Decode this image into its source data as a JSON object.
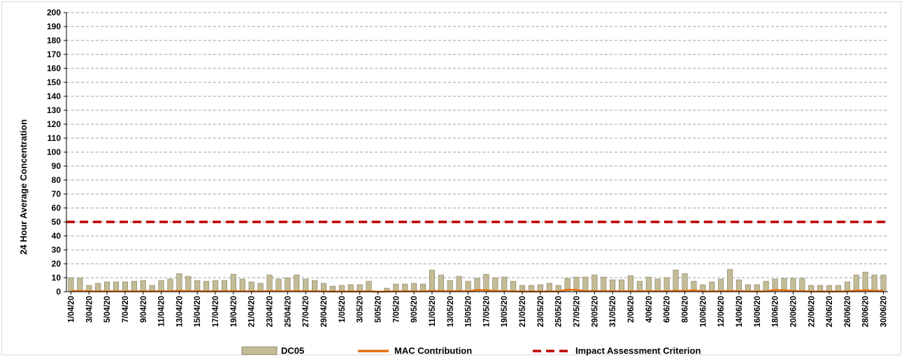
{
  "chart_data": {
    "type": "bar",
    "ylabel": "24 Hour Average Concentration",
    "xlabel": "",
    "ylim": [
      0,
      200
    ],
    "y_ticks": [
      0,
      10,
      20,
      30,
      40,
      50,
      60,
      70,
      80,
      90,
      100,
      110,
      120,
      130,
      140,
      150,
      160,
      170,
      180,
      190,
      200
    ],
    "grid": "horizontal dashed",
    "legend_position": "bottom",
    "categories": [
      "1/04/20",
      "2/04/20",
      "3/04/20",
      "4/04/20",
      "5/04/20",
      "6/04/20",
      "7/04/20",
      "8/04/20",
      "9/04/20",
      "10/04/20",
      "11/04/20",
      "12/04/20",
      "13/04/20",
      "14/04/20",
      "15/04/20",
      "16/04/20",
      "17/04/20",
      "18/04/20",
      "19/04/20",
      "20/04/20",
      "21/04/20",
      "22/04/20",
      "23/04/20",
      "24/04/20",
      "25/04/20",
      "26/04/20",
      "27/04/20",
      "28/04/20",
      "29/04/20",
      "30/04/20",
      "1/05/20",
      "2/05/20",
      "3/05/20",
      "4/05/20",
      "5/05/20",
      "6/05/20",
      "7/05/20",
      "8/05/20",
      "9/05/20",
      "10/05/20",
      "11/05/20",
      "12/05/20",
      "13/05/20",
      "14/05/20",
      "15/05/20",
      "16/05/20",
      "17/05/20",
      "18/05/20",
      "19/05/20",
      "20/05/20",
      "21/05/20",
      "22/05/20",
      "23/05/20",
      "24/05/20",
      "25/05/20",
      "26/05/20",
      "27/05/20",
      "28/05/20",
      "29/05/20",
      "30/05/20",
      "31/05/20",
      "1/06/20",
      "2/06/20",
      "3/06/20",
      "4/06/20",
      "5/06/20",
      "6/06/20",
      "7/06/20",
      "8/06/20",
      "9/06/20",
      "10/06/20",
      "11/06/20",
      "12/06/20",
      "13/06/20",
      "14/06/20",
      "15/06/20",
      "16/06/20",
      "17/06/20",
      "18/06/20",
      "19/06/20",
      "20/06/20",
      "21/06/20",
      "22/06/20",
      "23/06/20",
      "24/06/20",
      "25/06/20",
      "26/06/20",
      "27/06/20",
      "28/06/20",
      "29/06/20",
      "30/06/20"
    ],
    "x_tick_labels": [
      "1/04/20",
      "3/04/20",
      "5/04/20",
      "7/04/20",
      "9/04/20",
      "11/04/20",
      "13/04/20",
      "15/04/20",
      "17/04/20",
      "19/04/20",
      "21/04/20",
      "23/04/20",
      "25/04/20",
      "27/04/20",
      "29/04/20",
      "1/05/20",
      "3/05/20",
      "5/05/20",
      "7/05/20",
      "9/05/20",
      "11/05/20",
      "13/05/20",
      "15/05/20",
      "17/05/20",
      "19/05/20",
      "21/05/20",
      "23/05/20",
      "25/05/20",
      "27/05/20",
      "29/05/20",
      "31/05/20",
      "2/06/20",
      "4/06/20",
      "6/06/20",
      "8/06/20",
      "10/06/20",
      "12/06/20",
      "14/06/20",
      "16/06/20",
      "18/06/20",
      "20/06/20",
      "22/06/20",
      "24/06/20",
      "26/06/20",
      "28/06/20",
      "30/06/20"
    ],
    "series": [
      {
        "name": "DC05",
        "kind": "bar",
        "color": "#c4bc96",
        "values": [
          10,
          10,
          4.5,
          6,
          7,
          7,
          7,
          7.5,
          8,
          4.5,
          8,
          9,
          13,
          11,
          8,
          7.5,
          8,
          8,
          12.5,
          9,
          7,
          6,
          12,
          9,
          10,
          12,
          9,
          8,
          6,
          4,
          4.5,
          5,
          5,
          7.5,
          0,
          2.5,
          5.5,
          5.5,
          6,
          5.5,
          15.5,
          12,
          8,
          11,
          7.5,
          9.5,
          12.5,
          10,
          10.5,
          7.5,
          4.5,
          4.5,
          5,
          6,
          4.5,
          9.5,
          10.5,
          10.5,
          12,
          10.5,
          8.5,
          8.5,
          11.5,
          7.5,
          10.5,
          9,
          10,
          15.5,
          13,
          7.5,
          5,
          7,
          9,
          16,
          8.5,
          5,
          5,
          7.5,
          9,
          9.5,
          9.5,
          9.5,
          4.5,
          4.5,
          4.5,
          4.5,
          7,
          12,
          14,
          12,
          12
        ]
      },
      {
        "name": "MAC Contribution",
        "kind": "line",
        "color": "#e46c0a",
        "values": [
          0.5,
          0.5,
          0.3,
          0.3,
          0.3,
          0.3,
          0.3,
          0.3,
          0.4,
          0.3,
          0.4,
          0.4,
          0.6,
          0.5,
          0.4,
          0.3,
          0.4,
          0.4,
          0.5,
          0.4,
          0.3,
          0.3,
          0.5,
          0.4,
          0.4,
          0.5,
          0.4,
          0.4,
          0.3,
          0.2,
          0.2,
          0.2,
          0.2,
          0.3,
          0,
          0.1,
          0.3,
          0.3,
          0.3,
          0.3,
          0.6,
          0.5,
          0.4,
          0.5,
          0.3,
          1.2,
          1,
          0.5,
          0.5,
          0.3,
          0.2,
          0.2,
          0.2,
          0.3,
          0.2,
          1.5,
          1.2,
          0.5,
          0.5,
          0.5,
          0.4,
          0.4,
          0.5,
          0.3,
          0.5,
          0.4,
          0.4,
          0.6,
          0.6,
          1,
          0.3,
          0.3,
          0.4,
          0.6,
          0.4,
          0.3,
          0.3,
          0.3,
          1.2,
          1,
          0.5,
          0.5,
          0.2,
          0.2,
          0.2,
          0.2,
          0.3,
          0.8,
          1,
          0.6,
          0.6
        ]
      },
      {
        "name": "Impact Assessment Criterion",
        "kind": "dashed-line",
        "color": "#c00000",
        "value": 50
      }
    ]
  }
}
